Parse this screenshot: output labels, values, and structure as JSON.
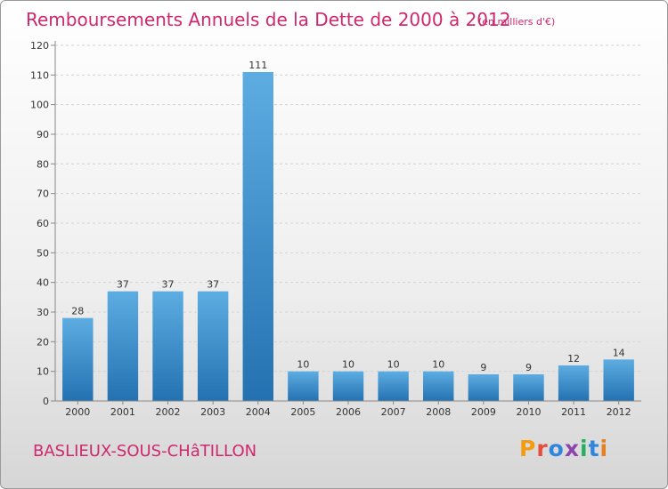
{
  "header": {
    "title": "Remboursements Annuels de la Dette de 2000 à 2012",
    "subtitle": "(en milliers d'€)"
  },
  "footer": {
    "commune": "BASLIEUX-SOUS-CHâTILLON",
    "logo": {
      "text": "Proxiti",
      "letters": [
        "P",
        "r",
        "o",
        "x",
        "i",
        "t",
        "i"
      ],
      "colors": [
        "#f39c12",
        "#e74c3c",
        "#2e86de",
        "#8e44ad",
        "#27ae60",
        "#2e86de",
        "#e67e22"
      ]
    }
  },
  "colors": {
    "bar_top": "#5dade2",
    "bar_bottom": "#2471b1",
    "accent": "#d0286e"
  },
  "chart_data": {
    "type": "bar",
    "title": "Remboursements Annuels de la Dette de 2000 à 2012",
    "subtitle": "(en milliers d'€)",
    "categories": [
      "2000",
      "2001",
      "2002",
      "2003",
      "2004",
      "2005",
      "2006",
      "2007",
      "2008",
      "2009",
      "2010",
      "2011",
      "2012"
    ],
    "values": [
      28,
      37,
      37,
      37,
      111,
      10,
      10,
      10,
      10,
      9,
      9,
      12,
      14
    ],
    "ylim": [
      0,
      120
    ],
    "yticks": [
      0,
      10,
      20,
      30,
      40,
      50,
      60,
      70,
      80,
      90,
      100,
      110,
      120
    ],
    "grid": true,
    "legend": "none"
  }
}
